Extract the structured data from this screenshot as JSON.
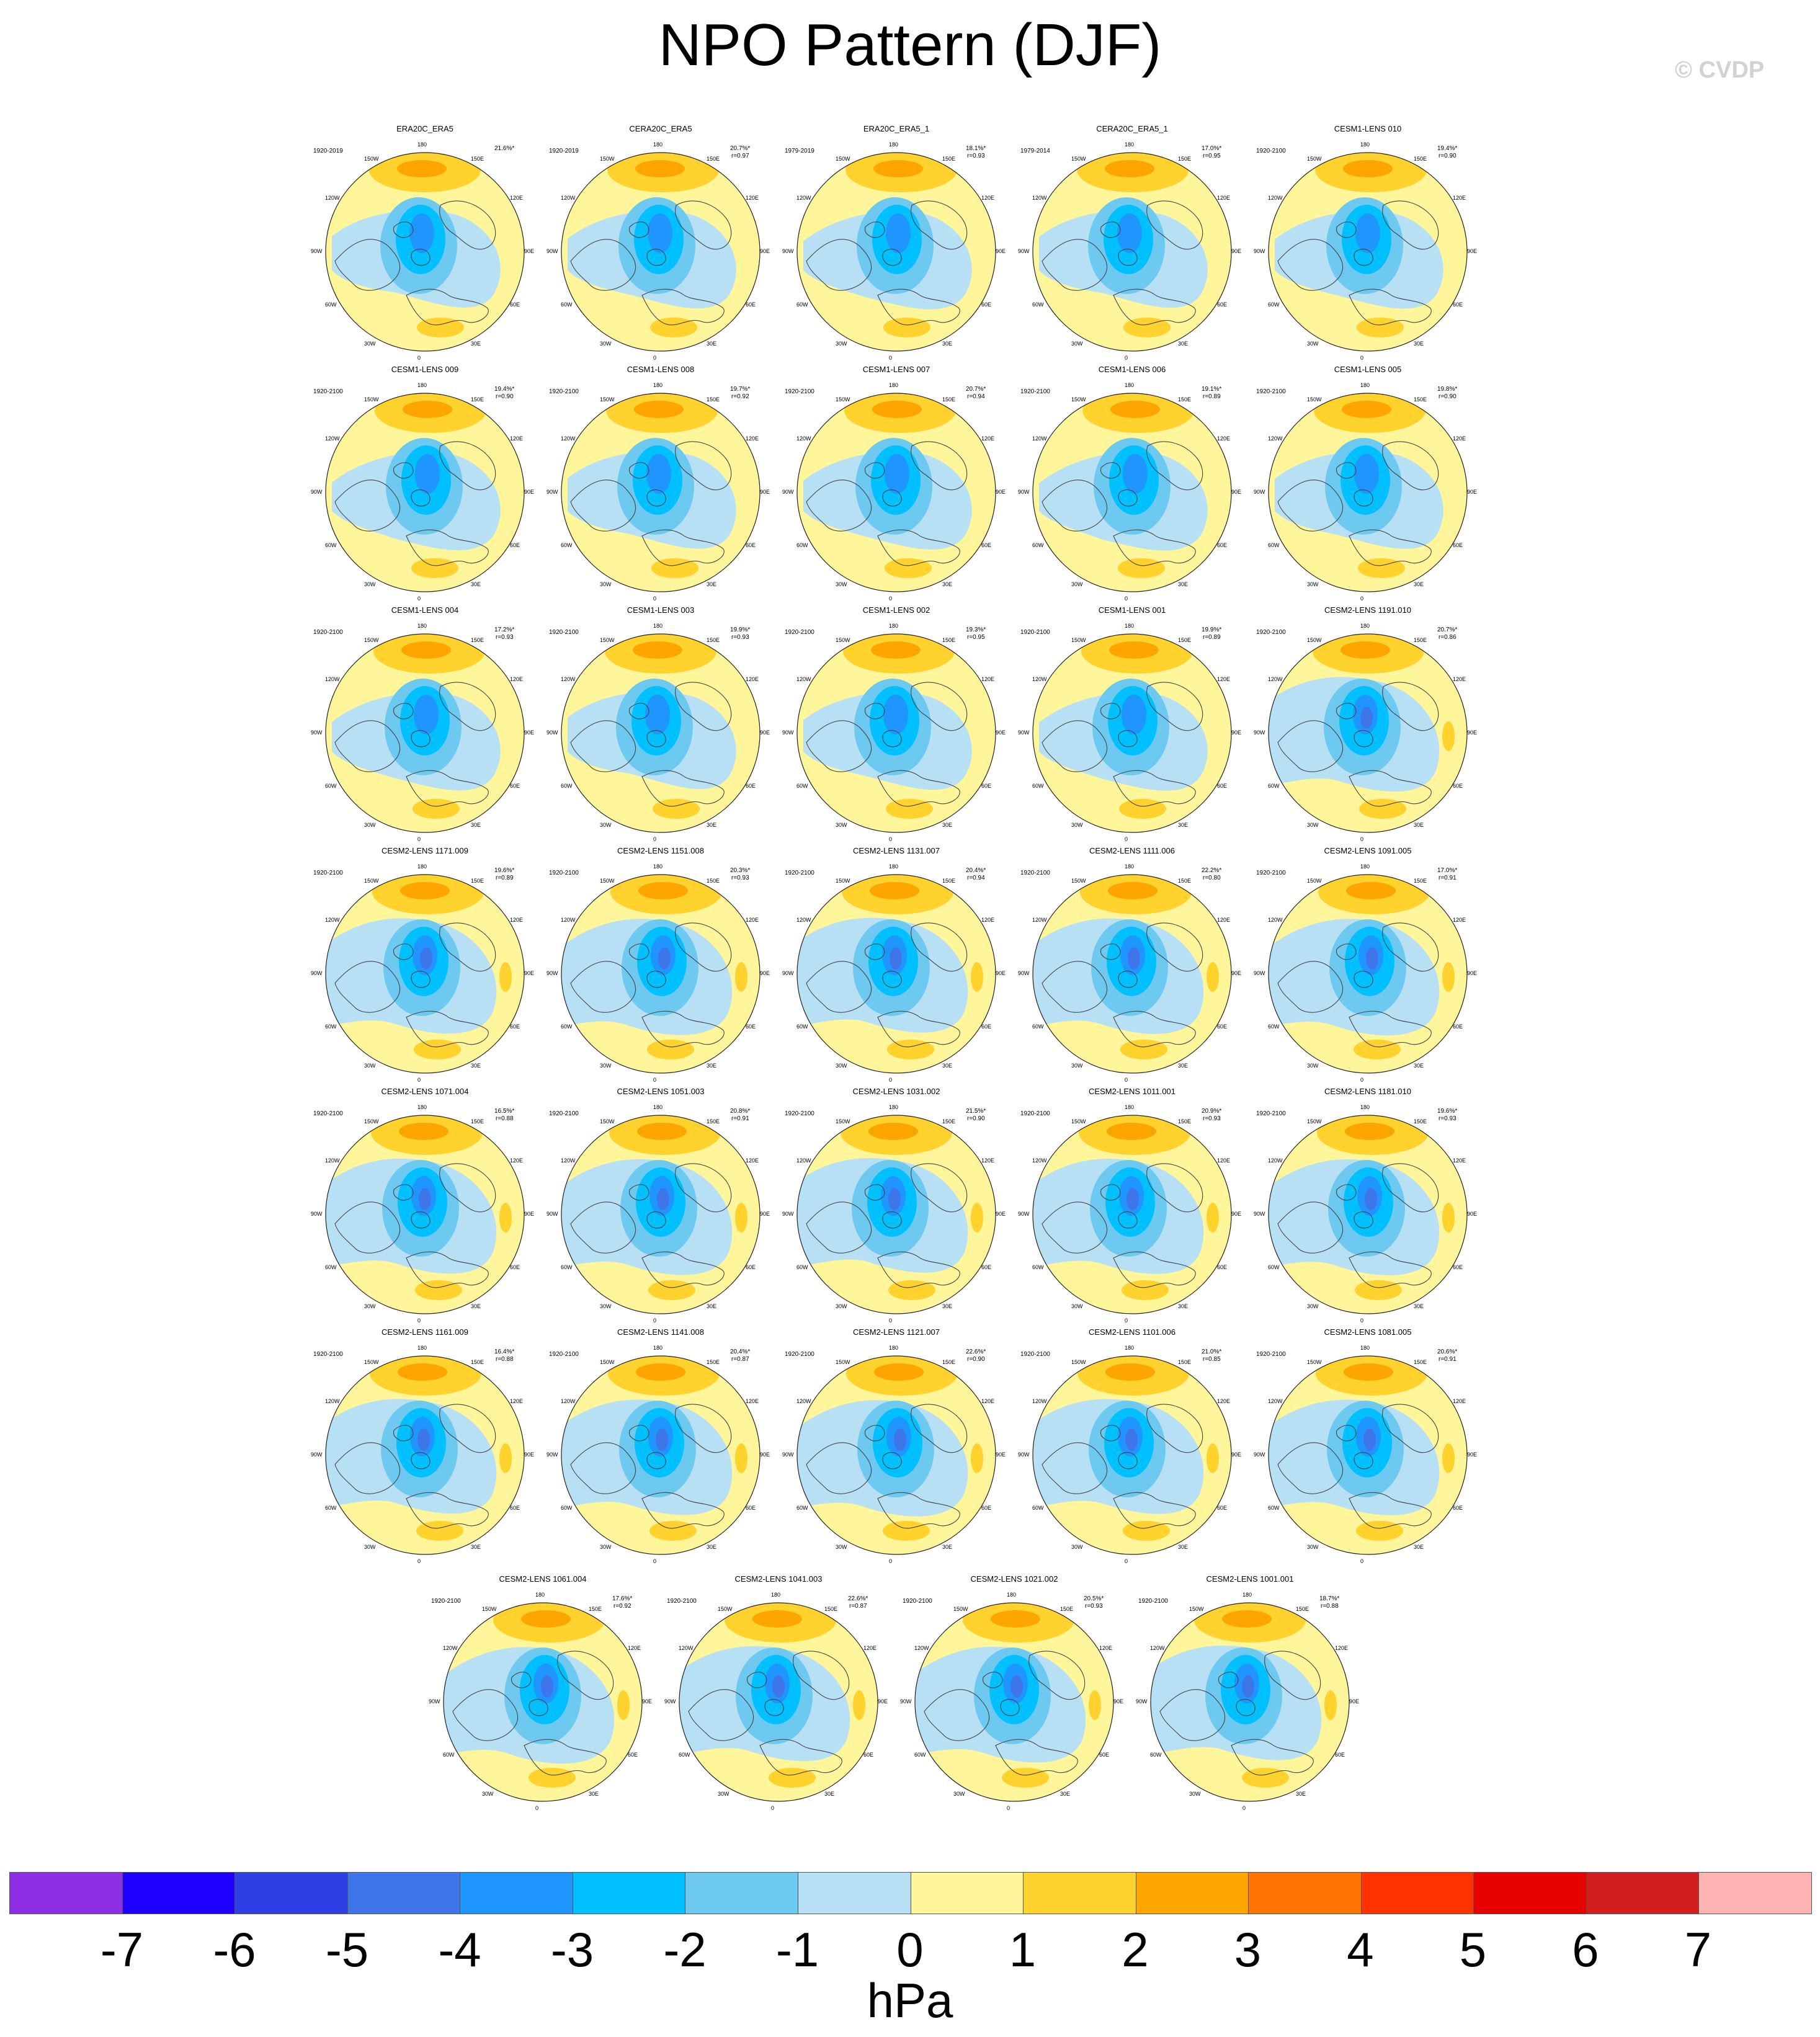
{
  "title": "NPO Pattern (DJF)",
  "watermark": "© CVDP",
  "units": "hPa",
  "lon_labels": [
    "180",
    "150E",
    "120E",
    "90E",
    "60E",
    "30E",
    "0",
    "30W",
    "60W",
    "90W",
    "120W",
    "150W"
  ],
  "colorbar": {
    "ticks": [
      "-7",
      "-6",
      "-5",
      "-4",
      "-3",
      "-2",
      "-1",
      "0",
      "1",
      "2",
      "3",
      "4",
      "5",
      "6",
      "7"
    ],
    "colors": [
      "#8e2ee5",
      "#1f00ff",
      "#2e3fe6",
      "#3e75e8",
      "#1f96ff",
      "#00c0ff",
      "#6ec9f0",
      "#b7e0f5",
      "#fff59b",
      "#ffd22e",
      "#ffa500",
      "#ff7300",
      "#ff3200",
      "#e60000",
      "#d21e1e",
      "#ffb4b4"
    ]
  },
  "panels": [
    {
      "title": "ERA20C_ERA5",
      "years": "1920-2019",
      "pct": "21.6%*",
      "r": ""
    },
    {
      "title": "CERA20C_ERA5",
      "years": "1920-2019",
      "pct": "20.7%*",
      "r": "r=0.97"
    },
    {
      "title": "ERA20C_ERA5_1",
      "years": "1979-2019",
      "pct": "18.1%*",
      "r": "r=0.93"
    },
    {
      "title": "CERA20C_ERA5_1",
      "years": "1979-2014",
      "pct": "17.0%*",
      "r": "r=0.95"
    },
    {
      "title": "CESM1-LENS 010",
      "years": "1920-2100",
      "pct": "19.4%*",
      "r": "r=0.90"
    },
    {
      "title": "CESM1-LENS 009",
      "years": "1920-2100",
      "pct": "19.4%*",
      "r": "r=0.90"
    },
    {
      "title": "CESM1-LENS 008",
      "years": "1920-2100",
      "pct": "19.7%*",
      "r": "r=0.92"
    },
    {
      "title": "CESM1-LENS 007",
      "years": "1920-2100",
      "pct": "20.7%*",
      "r": "r=0.94"
    },
    {
      "title": "CESM1-LENS 006",
      "years": "1920-2100",
      "pct": "19.1%*",
      "r": "r=0.89"
    },
    {
      "title": "CESM1-LENS 005",
      "years": "1920-2100",
      "pct": "19.8%*",
      "r": "r=0.90"
    },
    {
      "title": "CESM1-LENS 004",
      "years": "1920-2100",
      "pct": "17.2%*",
      "r": "r=0.93"
    },
    {
      "title": "CESM1-LENS 003",
      "years": "1920-2100",
      "pct": "19.9%*",
      "r": "r=0.93"
    },
    {
      "title": "CESM1-LENS 002",
      "years": "1920-2100",
      "pct": "19.3%*",
      "r": "r=0.95"
    },
    {
      "title": "CESM1-LENS 001",
      "years": "1920-2100",
      "pct": "19.9%*",
      "r": "r=0.89"
    },
    {
      "title": "CESM2-LENS 1191.010",
      "years": "1920-2100",
      "pct": "20.7%*",
      "r": "r=0.86"
    },
    {
      "title": "CESM2-LENS 1171.009",
      "years": "1920-2100",
      "pct": "19.6%*",
      "r": "r=0.89"
    },
    {
      "title": "CESM2-LENS 1151.008",
      "years": "1920-2100",
      "pct": "20.3%*",
      "r": "r=0.93"
    },
    {
      "title": "CESM2-LENS 1131.007",
      "years": "1920-2100",
      "pct": "20.4%*",
      "r": "r=0.94"
    },
    {
      "title": "CESM2-LENS 1111.006",
      "years": "1920-2100",
      "pct": "22.2%*",
      "r": "r=0.80"
    },
    {
      "title": "CESM2-LENS 1091.005",
      "years": "1920-2100",
      "pct": "17.0%*",
      "r": "r=0.91"
    },
    {
      "title": "CESM2-LENS 1071.004",
      "years": "1920-2100",
      "pct": "16.5%*",
      "r": "r=0.88"
    },
    {
      "title": "CESM2-LENS 1051.003",
      "years": "1920-2100",
      "pct": "20.8%*",
      "r": "r=0.91"
    },
    {
      "title": "CESM2-LENS 1031.002",
      "years": "1920-2100",
      "pct": "21.5%*",
      "r": "r=0.90"
    },
    {
      "title": "CESM2-LENS 1011.001",
      "years": "1920-2100",
      "pct": "20.9%*",
      "r": "r=0.93"
    },
    {
      "title": "CESM2-LENS 1181.010",
      "years": "1920-2100",
      "pct": "19.6%*",
      "r": "r=0.93"
    },
    {
      "title": "CESM2-LENS 1161.009",
      "years": "1920-2100",
      "pct": "16.4%*",
      "r": "r=0.88"
    },
    {
      "title": "CESM2-LENS 1141.008",
      "years": "1920-2100",
      "pct": "20.4%*",
      "r": "r=0.87"
    },
    {
      "title": "CESM2-LENS 1121.007",
      "years": "1920-2100",
      "pct": "22.6%*",
      "r": "r=0.90"
    },
    {
      "title": "CESM2-LENS 1101.006",
      "years": "1920-2100",
      "pct": "21.0%*",
      "r": "r=0.85"
    },
    {
      "title": "CESM2-LENS 1081.005",
      "years": "1920-2100",
      "pct": "20.6%*",
      "r": "r=0.91"
    },
    {
      "title": "CESM2-LENS 1061.004",
      "years": "1920-2100",
      "pct": "17.6%*",
      "r": "r=0.92"
    },
    {
      "title": "CESM2-LENS 1041.003",
      "years": "1920-2100",
      "pct": "22.6%*",
      "r": "r=0.87"
    },
    {
      "title": "CESM2-LENS 1021.002",
      "years": "1920-2100",
      "pct": "20.5%*",
      "r": "r=0.93"
    },
    {
      "title": "CESM2-LENS 1001.001",
      "years": "1920-2100",
      "pct": "18.7%*",
      "r": "r=0.88"
    }
  ]
}
